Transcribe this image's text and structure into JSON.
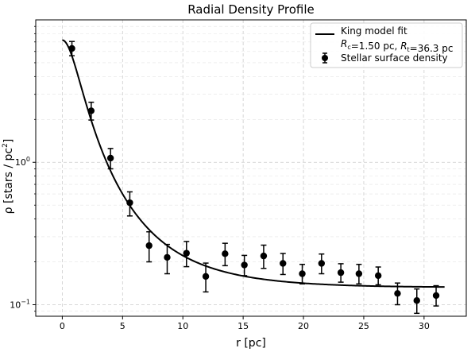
{
  "chart_data": {
    "type": "scatter",
    "title": "Radial Density Profile",
    "xlabel": "r [pc]",
    "ylabel_main": "ρ [stars / pc",
    "ylabel_sup": "2",
    "ylabel_end": "]",
    "xlim": [
      -2.2,
      33.5
    ],
    "ylim": [
      0.083,
      10.0
    ],
    "yscale": "log",
    "grid": true,
    "legend_position": "top-right",
    "x_ticks": [
      0,
      5,
      10,
      15,
      20,
      25,
      30
    ],
    "x_tick_labels": [
      "0",
      "5",
      "10",
      "15",
      "20",
      "25",
      "30"
    ],
    "y_major_ticks": [
      {
        "value": 0.1,
        "base": "10",
        "exp": "−1"
      },
      {
        "value": 1.0,
        "base": "10",
        "exp": "0"
      }
    ],
    "series": [
      {
        "name": "King model fit",
        "line2_parts": [
          {
            "t": "R",
            "style": "italic"
          },
          {
            "t": "c",
            "style": "sub"
          },
          {
            "t": "=1.50 pc, "
          },
          {
            "t": "R",
            "style": "italic"
          },
          {
            "t": "t",
            "style": "sub"
          },
          {
            "t": "=36.3 pc"
          }
        ],
        "kind": "line",
        "color": "#000000",
        "model": {
          "k": 7.7,
          "rc": 1.5,
          "rt": 36.3,
          "background": 0.133,
          "x_range": [
            0,
            31.7
          ]
        }
      },
      {
        "name": "Stellar surface density",
        "kind": "errorbar",
        "color": "#000000",
        "x": [
          0.8,
          2.4,
          4.0,
          5.6,
          7.2,
          8.7,
          10.3,
          11.9,
          13.5,
          15.1,
          16.7,
          18.3,
          19.9,
          21.5,
          23.1,
          24.6,
          26.2,
          27.8,
          29.4,
          31.0
        ],
        "y": [
          6.3,
          2.3,
          1.07,
          0.52,
          0.26,
          0.215,
          0.23,
          0.158,
          0.228,
          0.19,
          0.22,
          0.195,
          0.165,
          0.195,
          0.168,
          0.165,
          0.16,
          0.12,
          0.107,
          0.116
        ],
        "yerr_low": [
          0.7,
          0.32,
          0.17,
          0.1,
          0.06,
          0.05,
          0.045,
          0.035,
          0.04,
          0.03,
          0.04,
          0.032,
          0.025,
          0.03,
          0.024,
          0.025,
          0.022,
          0.02,
          0.02,
          0.018
        ],
        "yerr_high": [
          0.75,
          0.34,
          0.18,
          0.1,
          0.065,
          0.05,
          0.048,
          0.038,
          0.042,
          0.032,
          0.042,
          0.034,
          0.027,
          0.032,
          0.026,
          0.027,
          0.024,
          0.022,
          0.022,
          0.02
        ]
      }
    ]
  }
}
